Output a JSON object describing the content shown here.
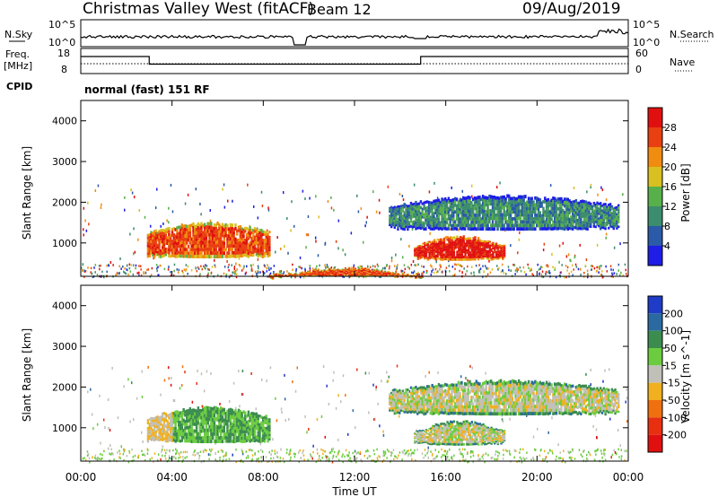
{
  "header": {
    "station": "Christmas Valley West (fitACF)",
    "beam": "Beam 12",
    "date": "09/Aug/2019"
  },
  "top_panels": {
    "nsky_label": "N.Sky",
    "nsky_ticks": [
      "10^5",
      "10^0"
    ],
    "nsearch_label": "N.Search",
    "nsearch_ticks": [
      "10^5",
      "10^0"
    ],
    "freq_label_1": "Freq.",
    "freq_label_2": "[MHz]",
    "freq_ticks": [
      "18",
      "8"
    ],
    "nave_label": "Nave",
    "nave_ticks": [
      "60",
      "0"
    ],
    "cpid_label": "CPID",
    "cpid_text": "normal (fast) 151 RF"
  },
  "chart_data": [
    {
      "type": "heatmap",
      "name": "power",
      "ylabel": "Slant Range [km]",
      "ylim": [
        180,
        4500
      ],
      "yticks": [
        "1000",
        "2000",
        "3000",
        "4000"
      ],
      "xlim": [
        "00:00",
        "24:00"
      ],
      "colorbar_label": "Power [dB]",
      "colorbar_ticks": [
        "4",
        "8",
        "12",
        "16",
        "20",
        "24",
        "28"
      ],
      "colors": [
        "#1e1ee6",
        "#2a5aa8",
        "#3c8c6e",
        "#58b04a",
        "#d8c020",
        "#f08c10",
        "#e84010",
        "#e01010"
      ],
      "regions": [
        {
          "t0": 2.9,
          "t1": 8.3,
          "r0": 620,
          "r1": 1540,
          "level": 6
        },
        {
          "t0": 14.6,
          "t1": 18.6,
          "r0": 560,
          "r1": 1200,
          "level": 7
        },
        {
          "t0": 13.5,
          "t1": 23.6,
          "r0": 1300,
          "r1": 2200,
          "level": 2
        },
        {
          "t0": 8.3,
          "t1": 15.0,
          "r0": 180,
          "r1": 420,
          "level": 6
        }
      ]
    },
    {
      "type": "heatmap",
      "name": "velocity",
      "ylabel": "Slant Range [km]",
      "ylim": [
        180,
        4500
      ],
      "yticks": [
        "1000",
        "2000",
        "3000",
        "4000"
      ],
      "xlim": [
        "00:00",
        "24:00"
      ],
      "xticks": [
        "00:00",
        "04:00",
        "08:00",
        "12:00",
        "16:00",
        "20:00",
        "00:00"
      ],
      "xlabel": "Time UT",
      "colorbar_label": "Velocity [m s^-1]",
      "colorbar_ticks": [
        "200",
        "100",
        "50",
        "15",
        "-15",
        "-50",
        "-100",
        "-200"
      ],
      "colors": [
        "#1e3cc8",
        "#2a6aa0",
        "#3c8c50",
        "#6ccc40",
        "#c0c0b8",
        "#f0b020",
        "#f07010",
        "#e83010",
        "#e01010"
      ],
      "regions": [
        {
          "t0": 2.9,
          "t1": 8.3,
          "r0": 620,
          "r1": 1540,
          "level": 3
        },
        {
          "t0": 14.6,
          "t1": 18.6,
          "r0": 560,
          "r1": 1200,
          "level": 4
        },
        {
          "t0": 13.5,
          "t1": 23.6,
          "r0": 1300,
          "r1": 2200,
          "level": 4
        }
      ]
    }
  ]
}
